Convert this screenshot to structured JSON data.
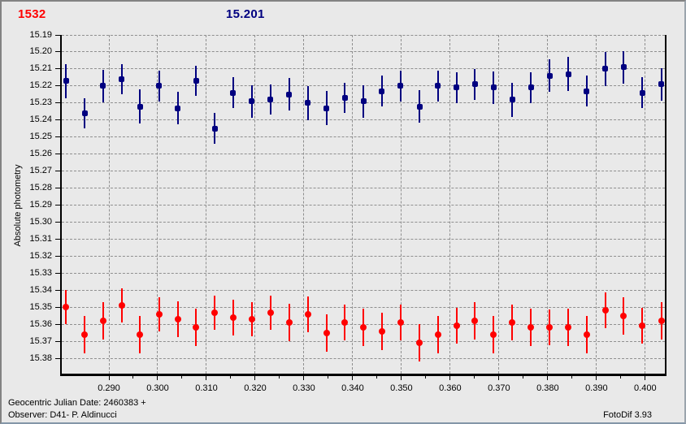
{
  "header": {
    "left_value": "1532",
    "left_color": "#ff0000",
    "center_value": "15.201",
    "center_color": "#000080"
  },
  "footer": {
    "line1": "Geocentric Julian Date: 2460383 +",
    "line2": "Observer: D41- P. Aldinucci",
    "app_version": "FotoDif 3.93"
  },
  "colors": {
    "background": "#e9e9e9",
    "grid": "#8f8f8f",
    "axis": "#000000",
    "series_blue": "#000080",
    "series_red": "#ff0000"
  },
  "chart_data": {
    "type": "scatter",
    "title": "",
    "xlabel": "",
    "ylabel": "Absolute photometry",
    "grid": true,
    "y_axis_inverted_magnitudes": true,
    "xlim": [
      0.28033,
      0.40403
    ],
    "ylim_top": 15.19,
    "ylim_bottom": 15.389,
    "yticks": [
      "15.19",
      "15.20",
      "15.21",
      "15.22",
      "15.23",
      "15.24",
      "15.25",
      "15.26",
      "15.27",
      "15.28",
      "15.29",
      "15.30",
      "15.31",
      "15.32",
      "15.33",
      "15.34",
      "15.35",
      "15.36",
      "15.37",
      "15.38"
    ],
    "xticks": [
      "0.290",
      "0.300",
      "0.310",
      "0.320",
      "0.330",
      "0.340",
      "0.350",
      "0.360",
      "0.370",
      "0.380",
      "0.390",
      "0.400"
    ],
    "series": [
      {
        "name": "blue-photometry-series",
        "color": "#000080",
        "marker": "square",
        "x": [
          0.2812,
          0.285,
          0.2888,
          0.2926,
          0.2964,
          0.3003,
          0.3041,
          0.3079,
          0.3117,
          0.3155,
          0.3193,
          0.3231,
          0.327,
          0.3308,
          0.3346,
          0.3384,
          0.3422,
          0.346,
          0.3498,
          0.3537,
          0.3575,
          0.3613,
          0.3651,
          0.3689,
          0.3727,
          0.3766,
          0.3804,
          0.3842,
          0.388,
          0.3918,
          0.3956,
          0.3994,
          0.4033
        ],
        "y": [
          15.217,
          15.236,
          15.22,
          15.216,
          15.232,
          15.22,
          15.233,
          15.217,
          15.245,
          15.224,
          15.229,
          15.228,
          15.225,
          15.23,
          15.233,
          15.227,
          15.229,
          15.223,
          15.22,
          15.232,
          15.22,
          15.221,
          15.219,
          15.221,
          15.228,
          15.221,
          15.214,
          15.213,
          15.223,
          15.21,
          15.209,
          15.224,
          15.219
        ],
        "err": [
          0.01,
          0.009,
          0.0095,
          0.009,
          0.01,
          0.009,
          0.0095,
          0.009,
          0.009,
          0.009,
          0.0095,
          0.009,
          0.0095,
          0.01,
          0.01,
          0.009,
          0.0095,
          0.009,
          0.009,
          0.0095,
          0.009,
          0.009,
          0.009,
          0.0095,
          0.01,
          0.009,
          0.0095,
          0.01,
          0.009,
          0.01,
          0.0095,
          0.009,
          0.0095
        ]
      },
      {
        "name": "red-photometry-series",
        "color": "#ff0000",
        "marker": "circle",
        "x": [
          0.2812,
          0.285,
          0.2888,
          0.2926,
          0.2964,
          0.3003,
          0.3041,
          0.3079,
          0.3117,
          0.3155,
          0.3193,
          0.3231,
          0.327,
          0.3308,
          0.3346,
          0.3384,
          0.3422,
          0.346,
          0.3498,
          0.3537,
          0.3575,
          0.3613,
          0.3651,
          0.3689,
          0.3727,
          0.3766,
          0.3804,
          0.3842,
          0.388,
          0.3918,
          0.3956,
          0.3994,
          0.4033
        ],
        "y": [
          15.35,
          15.366,
          15.358,
          15.349,
          15.366,
          15.354,
          15.357,
          15.362,
          15.353,
          15.356,
          15.357,
          15.353,
          15.359,
          15.354,
          15.365,
          15.359,
          15.362,
          15.364,
          15.359,
          15.371,
          15.366,
          15.361,
          15.358,
          15.366,
          15.359,
          15.362,
          15.362,
          15.362,
          15.366,
          15.352,
          15.355,
          15.361,
          15.358
        ],
        "err": [
          0.01,
          0.011,
          0.011,
          0.01,
          0.011,
          0.01,
          0.0105,
          0.011,
          0.01,
          0.0105,
          0.01,
          0.01,
          0.011,
          0.0105,
          0.011,
          0.0105,
          0.011,
          0.011,
          0.0105,
          0.011,
          0.011,
          0.0105,
          0.011,
          0.011,
          0.0105,
          0.011,
          0.0105,
          0.011,
          0.011,
          0.0105,
          0.011,
          0.0105,
          0.011
        ]
      }
    ]
  }
}
